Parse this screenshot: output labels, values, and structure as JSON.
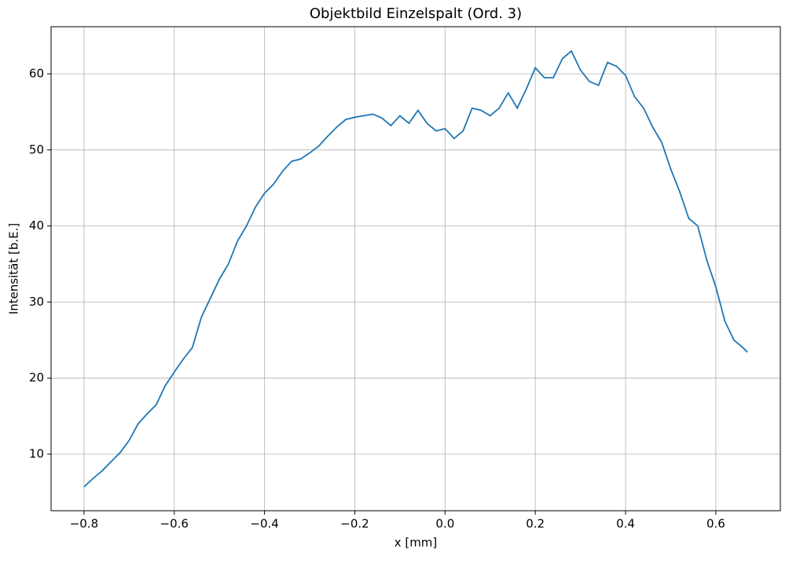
{
  "chart_data": {
    "type": "line",
    "title": "Objektbild Einzelspalt (Ord. 3)",
    "x_label": "x [mm]",
    "y_label": "Intensität [b.E.]",
    "x": [
      -0.8,
      -0.78,
      -0.76,
      -0.74,
      -0.72,
      -0.7,
      -0.68,
      -0.66,
      -0.64,
      -0.62,
      -0.6,
      -0.58,
      -0.56,
      -0.54,
      -0.52,
      -0.5,
      -0.48,
      -0.46,
      -0.44,
      -0.42,
      -0.4,
      -0.38,
      -0.36,
      -0.34,
      -0.32,
      -0.3,
      -0.28,
      -0.26,
      -0.24,
      -0.22,
      -0.2,
      -0.18,
      -0.16,
      -0.14,
      -0.12,
      -0.1,
      -0.08,
      -0.06,
      -0.04,
      -0.02,
      0,
      0.02,
      0.04,
      0.06,
      0.08,
      0.1,
      0.12,
      0.14,
      0.16,
      0.18,
      0.2,
      0.22,
      0.24,
      0.26,
      0.28,
      0.3,
      0.32,
      0.34,
      0.36,
      0.38,
      0.4,
      0.42,
      0.44,
      0.46,
      0.48,
      0.5,
      0.52,
      0.54,
      0.56,
      0.58,
      0.6,
      0.62,
      0.64,
      0.66,
      0.67
    ],
    "series": [
      {
        "color": "#1f77b4",
        "values": [
          5.7,
          6.8,
          7.8,
          9.0,
          10.2,
          11.8,
          14.0,
          15.3,
          16.5,
          19.0,
          20.8,
          22.5,
          24.0,
          28.0,
          30.5,
          33.0,
          35.0,
          38.0,
          40.0,
          42.5,
          44.3,
          45.5,
          47.2,
          48.5,
          48.8,
          49.6,
          50.5,
          51.8,
          53.0,
          54.0,
          54.3,
          54.5,
          54.7,
          54.2,
          53.2,
          54.5,
          53.5,
          55.2,
          53.5,
          52.5,
          52.8,
          51.5,
          52.5,
          55.5,
          55.2,
          54.5,
          55.5,
          57.5,
          55.5,
          58.0,
          60.8,
          59.5,
          59.5,
          62.0,
          63.0,
          60.5,
          59.0,
          58.5,
          61.5,
          61.0,
          59.8,
          57.0,
          55.5,
          53.0,
          51.0,
          47.5,
          44.5,
          41.0,
          40.0,
          35.5,
          32.0,
          27.5,
          25.0,
          24.0,
          23.4
        ]
      }
    ],
    "xlim": [
      -0.873,
      0.743
    ],
    "ylim": [
      2.56,
      66.2
    ],
    "xticks": [
      {
        "value": -0.8,
        "label": "−0.8"
      },
      {
        "value": -0.6,
        "label": "−0.6"
      },
      {
        "value": -0.4,
        "label": "−0.4"
      },
      {
        "value": -0.2,
        "label": "−0.2"
      },
      {
        "value": 0,
        "label": "0.0"
      },
      0.2,
      0.4,
      0.6
    ],
    "yticks": [
      10,
      20,
      30,
      40,
      50,
      60
    ],
    "grid": true
  }
}
